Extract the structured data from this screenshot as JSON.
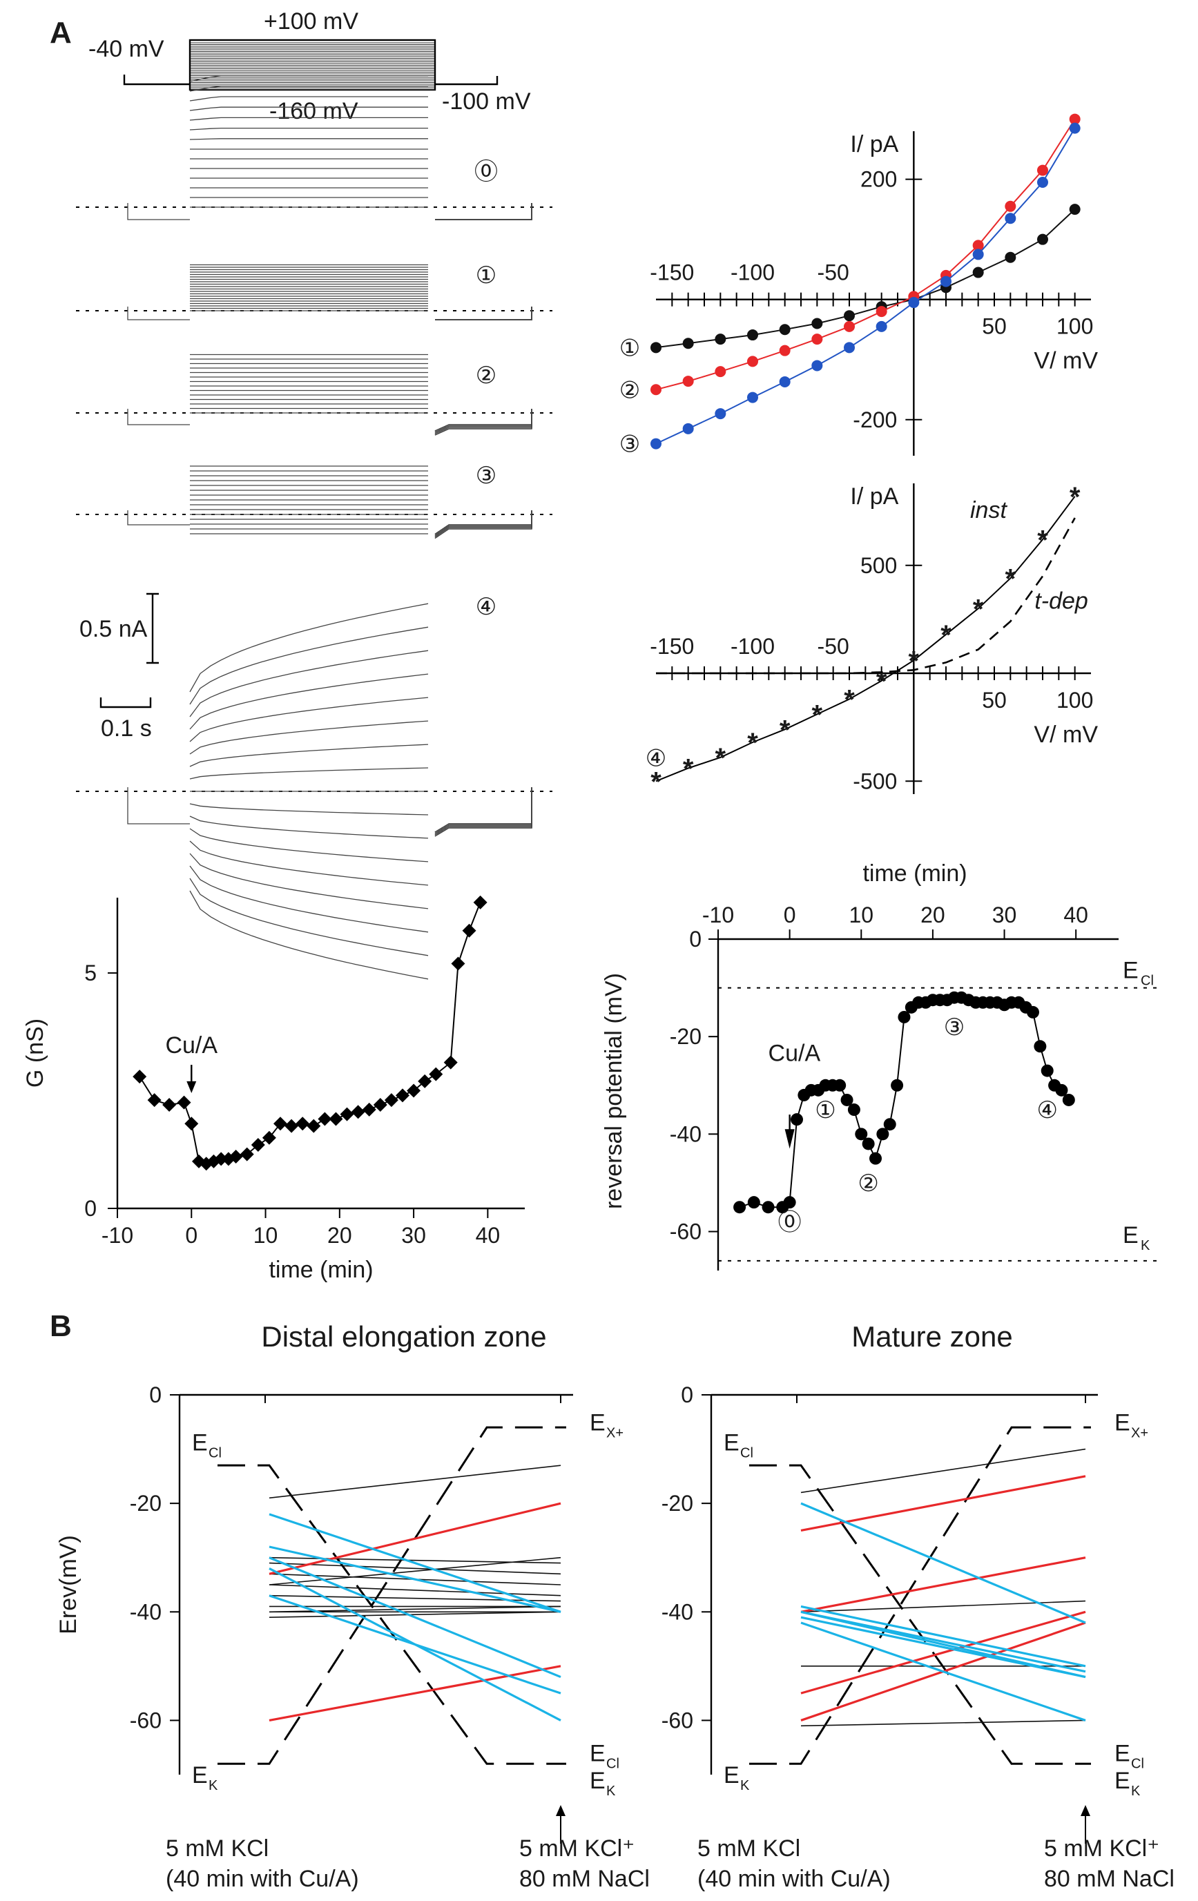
{
  "panel_labels": {
    "a": "A",
    "b": "B"
  },
  "protocol": {
    "top": "+100 mV",
    "hold": "-40 mV",
    "bottom": "-160 mV",
    "tail": "-100 mV"
  },
  "traces": {
    "labels": [
      "⓪",
      "①",
      "②",
      "③",
      "④"
    ],
    "scale_current": "0.5 nA",
    "scale_time": "0.1 s"
  },
  "chart_data": [
    {
      "id": "iv1",
      "type": "line",
      "title": "",
      "xlabel": "V/ mV",
      "ylabel": "I/ pA",
      "xlim": [
        -160,
        110
      ],
      "ylim": [
        -260,
        280
      ],
      "xticks": [
        -150,
        -100,
        -50,
        50,
        100
      ],
      "yticks": [
        200,
        -200
      ],
      "series": [
        {
          "name": "①",
          "color": "#111111",
          "x": [
            -160,
            -140,
            -120,
            -100,
            -80,
            -60,
            -40,
            -20,
            0,
            20,
            40,
            60,
            80,
            100
          ],
          "y": [
            -80,
            -73,
            -66,
            -59,
            -50,
            -40,
            -27,
            -12,
            0,
            20,
            45,
            70,
            100,
            150
          ]
        },
        {
          "name": "②",
          "color": "#e8282a",
          "x": [
            -160,
            -140,
            -120,
            -100,
            -80,
            -60,
            -40,
            -20,
            0,
            20,
            40,
            60,
            80,
            100
          ],
          "y": [
            -150,
            -136,
            -120,
            -103,
            -85,
            -66,
            -45,
            -20,
            5,
            40,
            90,
            155,
            215,
            300
          ]
        },
        {
          "name": "③",
          "color": "#2255c4",
          "x": [
            -160,
            -140,
            -120,
            -100,
            -80,
            -60,
            -40,
            -20,
            0,
            20,
            40,
            60,
            80,
            100
          ],
          "y": [
            -240,
            -215,
            -190,
            -163,
            -137,
            -110,
            -80,
            -45,
            -5,
            30,
            75,
            135,
            195,
            285
          ]
        }
      ]
    },
    {
      "id": "iv2",
      "type": "line",
      "title": "",
      "xlabel": "V/ mV",
      "ylabel": "I/ pA",
      "xlim": [
        -160,
        110
      ],
      "ylim": [
        -560,
        880
      ],
      "xticks": [
        -150,
        -100,
        -50,
        50,
        100
      ],
      "yticks": [
        500,
        -500
      ],
      "annotations": [
        "inst",
        "t-dep"
      ],
      "series": [
        {
          "name": "④ inst",
          "style": "solid-star",
          "x": [
            -160,
            -140,
            -120,
            -100,
            -80,
            -60,
            -40,
            -20,
            0,
            20,
            40,
            60,
            80,
            100
          ],
          "y": [
            -500,
            -440,
            -390,
            -320,
            -260,
            -190,
            -120,
            -35,
            60,
            180,
            300,
            440,
            620,
            820
          ]
        },
        {
          "name": "t-dep",
          "style": "dashed",
          "x": [
            -160,
            -120,
            -80,
            -40,
            -20,
            0,
            20,
            40,
            60,
            80,
            100
          ],
          "y": [
            0,
            0,
            0,
            0,
            5,
            15,
            50,
            110,
            240,
            450,
            720
          ]
        }
      ]
    },
    {
      "id": "conductance",
      "type": "line",
      "title": "",
      "xlabel": "time (min)",
      "ylabel": "G (nS)",
      "xlim": [
        -10,
        45
      ],
      "ylim": [
        0,
        6.6
      ],
      "xticks": [
        -10,
        0,
        10,
        20,
        30,
        40
      ],
      "yticks": [
        0,
        5
      ],
      "annotation": "Cu/A",
      "annotation_x": 0,
      "series": [
        {
          "name": "G",
          "x": [
            -7,
            -5,
            -3,
            -1,
            0,
            1,
            2,
            3,
            4,
            5,
            6,
            7.5,
            9,
            10.5,
            12,
            13.5,
            15,
            16.5,
            18,
            19.5,
            21,
            22.5,
            24,
            25.5,
            27,
            28.5,
            30,
            31.5,
            33,
            35,
            36,
            37.5,
            39
          ],
          "y": [
            2.8,
            2.3,
            2.2,
            2.25,
            1.8,
            1.0,
            0.95,
            1.0,
            1.05,
            1.05,
            1.1,
            1.15,
            1.35,
            1.5,
            1.8,
            1.75,
            1.8,
            1.75,
            1.9,
            1.9,
            2.0,
            2.05,
            2.1,
            2.2,
            2.3,
            2.4,
            2.5,
            2.7,
            2.85,
            3.1,
            5.2,
            5.9,
            6.5
          ]
        }
      ]
    },
    {
      "id": "reversal",
      "type": "scatter",
      "title": "",
      "xlabel": "time (min)",
      "ylabel": "reversal potential (mV)",
      "xlim": [
        -10,
        45
      ],
      "ylim": [
        -68,
        0
      ],
      "xticks": [
        -10,
        0,
        10,
        20,
        30,
        40
      ],
      "yticks": [
        0,
        -20,
        -40,
        -60
      ],
      "reference_lines": [
        {
          "name": "ECl",
          "y": -10
        },
        {
          "name": "EK",
          "y": -66
        }
      ],
      "annotation": "Cu/A",
      "point_labels": [
        {
          "label": "⓪",
          "x": 0,
          "y": -58
        },
        {
          "label": "①",
          "x": 5,
          "y": -35
        },
        {
          "label": "②",
          "x": 11,
          "y": -50
        },
        {
          "label": "③",
          "x": 23,
          "y": -18
        },
        {
          "label": "④",
          "x": 36,
          "y": -35
        }
      ],
      "series": [
        {
          "name": "Erev",
          "x": [
            -7,
            -5,
            -3,
            -1,
            0,
            1,
            2,
            3,
            4,
            5,
            6,
            7,
            8,
            9,
            10,
            11,
            12,
            13,
            14,
            15,
            16,
            17,
            18,
            19,
            20,
            21,
            22,
            23,
            24,
            25,
            26,
            27,
            28,
            29,
            30,
            31,
            32,
            33,
            34,
            35,
            36,
            37,
            38,
            39
          ],
          "y": [
            -55,
            -54,
            -55,
            -55,
            -54,
            -37,
            -32,
            -31,
            -31,
            -30,
            -30,
            -30,
            -33,
            -35,
            -40,
            -42,
            -45,
            -40,
            -38,
            -30,
            -16,
            -14,
            -13,
            -13,
            -12.5,
            -12.5,
            -12.5,
            -12,
            -12,
            -12.5,
            -13,
            -13,
            -13,
            -13,
            -13.5,
            -13,
            -13,
            -14,
            -15,
            -22,
            -27,
            -30,
            -31,
            -33
          ]
        }
      ]
    },
    {
      "id": "distal",
      "type": "line",
      "title": "Distal elongation zone",
      "xlabel": "",
      "ylabel": "Erev(mV)",
      "ylim": [
        -70,
        0
      ],
      "yticks": [
        0,
        -20,
        -40,
        -60
      ],
      "left_condition": [
        "5 mM KCl",
        "(40 min with Cu/A)"
      ],
      "right_condition": [
        "5 mM KCl⁺",
        "80 mM NaCl"
      ],
      "level_labels": {
        "ECl_left": "ECl",
        "EK_left": "EK",
        "EX_right": "EX+",
        "ECl_right": "ECl",
        "EK_right": "EK"
      },
      "reference_lines": [
        {
          "name": "ECl",
          "y": [
            -13,
            -13,
            -68,
            -68
          ]
        },
        {
          "name": "EK",
          "y": [
            -68,
            -68,
            -6,
            -6
          ]
        }
      ],
      "series": [
        {
          "color": "black",
          "y": [
            -19,
            -13
          ]
        },
        {
          "color": "black",
          "y": [
            -30,
            -31
          ]
        },
        {
          "color": "black",
          "y": [
            -31,
            -33
          ]
        },
        {
          "color": "black",
          "y": [
            -33,
            -35
          ]
        },
        {
          "color": "black",
          "y": [
            -35,
            -37
          ]
        },
        {
          "color": "black",
          "y": [
            -37,
            -38
          ]
        },
        {
          "color": "black",
          "y": [
            -39,
            -39
          ]
        },
        {
          "color": "black",
          "y": [
            -40,
            -40
          ]
        },
        {
          "color": "black",
          "y": [
            -41,
            -40
          ]
        },
        {
          "color": "black",
          "y": [
            -40,
            -39
          ]
        },
        {
          "color": "black",
          "y": [
            -35,
            -30
          ]
        },
        {
          "color": "red",
          "y": [
            -33,
            -20
          ]
        },
        {
          "color": "red",
          "y": [
            -60,
            -50
          ]
        },
        {
          "color": "cyan",
          "y": [
            -22,
            -40
          ]
        },
        {
          "color": "cyan",
          "y": [
            -28,
            -40
          ]
        },
        {
          "color": "cyan",
          "y": [
            -30,
            -52
          ]
        },
        {
          "color": "cyan",
          "y": [
            -32,
            -60
          ]
        },
        {
          "color": "cyan",
          "y": [
            -37,
            -55
          ]
        }
      ]
    },
    {
      "id": "mature",
      "type": "line",
      "title": "Mature zone",
      "xlabel": "",
      "ylabel": "",
      "ylim": [
        -70,
        0
      ],
      "yticks": [
        0,
        -20,
        -40,
        -60
      ],
      "left_condition": [
        "5 mM KCl",
        "(40 min with Cu/A)"
      ],
      "right_condition": [
        "5 mM KCl⁺",
        "80 mM NaCl"
      ],
      "level_labels": {
        "ECl_left": "ECl",
        "EK_left": "EK",
        "EX_right": "EX+",
        "ECl_right": "ECl",
        "EK_right": "EK"
      },
      "reference_lines": [
        {
          "name": "ECl",
          "y": [
            -13,
            -13,
            -68,
            -68
          ]
        },
        {
          "name": "EK",
          "y": [
            -68,
            -68,
            -6,
            -6
          ]
        }
      ],
      "series": [
        {
          "color": "black",
          "y": [
            -18,
            -10
          ]
        },
        {
          "color": "black",
          "y": [
            -40,
            -38
          ]
        },
        {
          "color": "black",
          "y": [
            -50,
            -50
          ]
        },
        {
          "color": "black",
          "y": [
            -61,
            -60
          ]
        },
        {
          "color": "red",
          "y": [
            -25,
            -15
          ]
        },
        {
          "color": "red",
          "y": [
            -40,
            -30
          ]
        },
        {
          "color": "red",
          "y": [
            -55,
            -40
          ]
        },
        {
          "color": "red",
          "y": [
            -60,
            -42
          ]
        },
        {
          "color": "cyan",
          "y": [
            -20,
            -42
          ]
        },
        {
          "color": "cyan",
          "y": [
            -39,
            -50
          ]
        },
        {
          "color": "cyan",
          "y": [
            -40,
            -51
          ]
        },
        {
          "color": "cyan",
          "y": [
            -40,
            -52
          ]
        },
        {
          "color": "cyan",
          "y": [
            -41,
            -52
          ]
        },
        {
          "color": "cyan",
          "y": [
            -42,
            -60
          ]
        }
      ]
    }
  ]
}
